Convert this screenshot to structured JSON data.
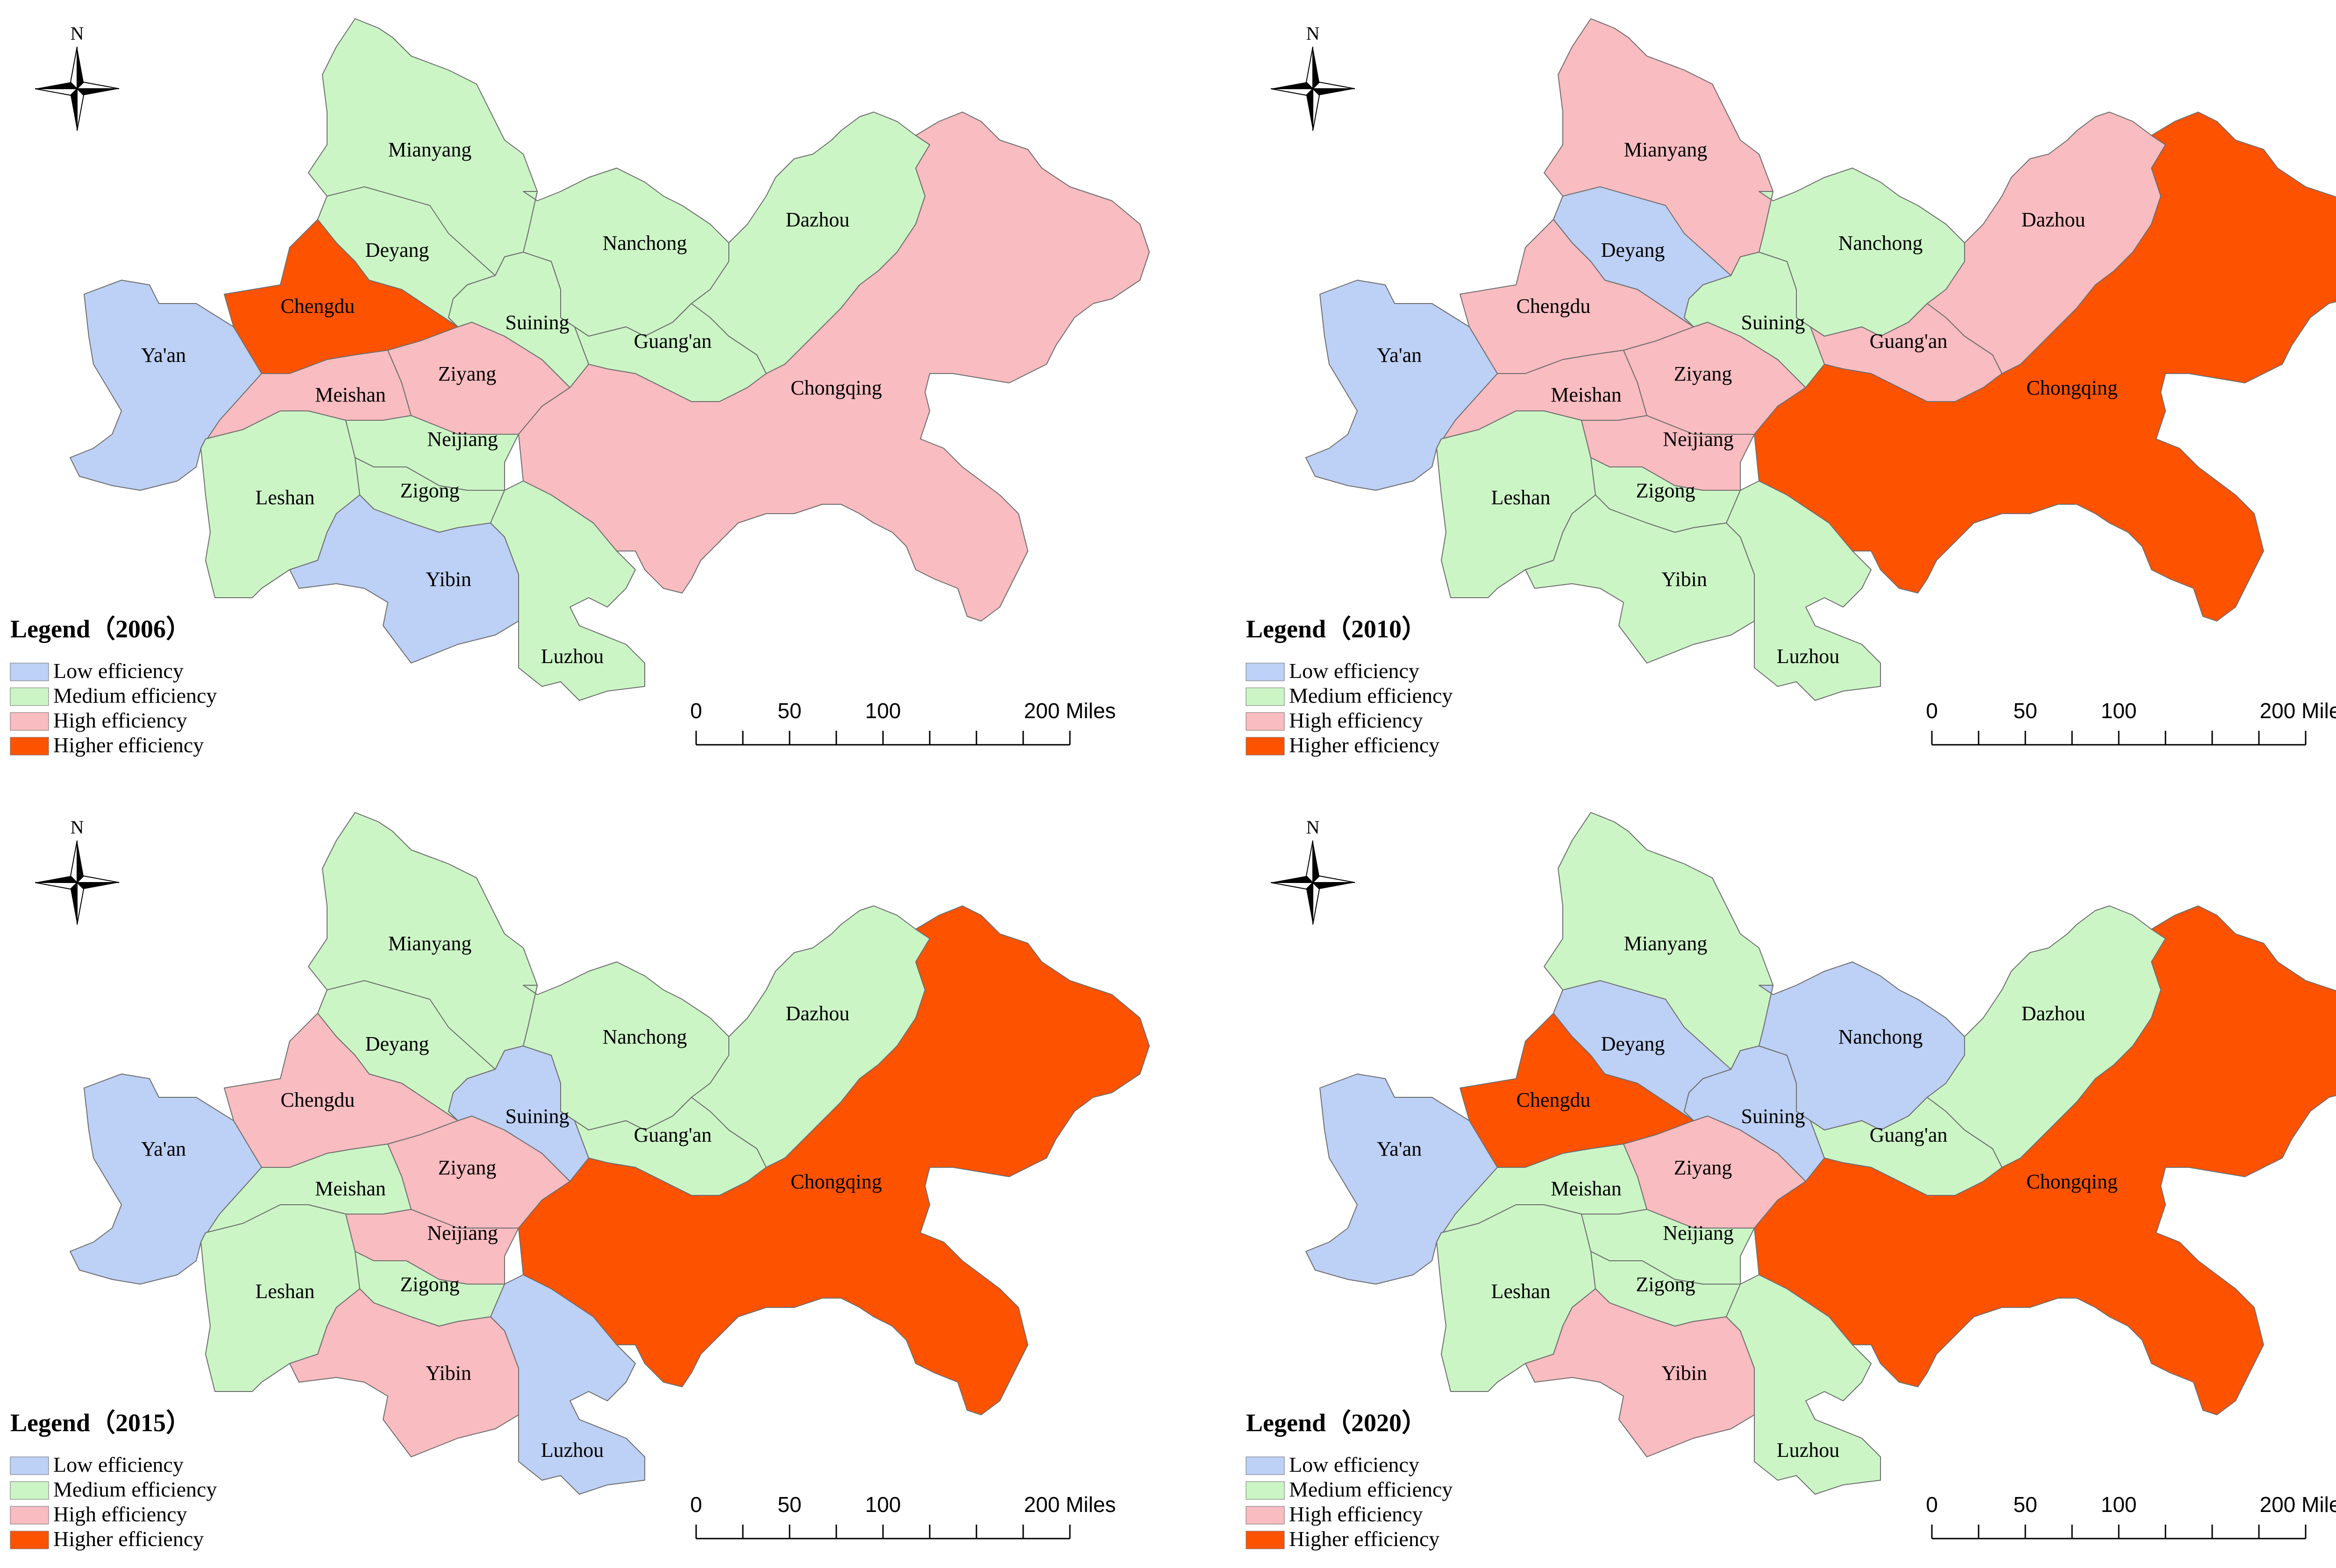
{
  "colors": {
    "low": "#bdd0f5",
    "medium": "#ccf5c6",
    "high": "#f9bcc0",
    "higher": "#fd5200",
    "border": "#6e6e6e"
  },
  "legend_items": [
    {
      "key": "low",
      "label": "Low efficiency"
    },
    {
      "key": "medium",
      "label": "Medium efficiency"
    },
    {
      "key": "high",
      "label": "High efficiency"
    },
    {
      "key": "higher",
      "label": "Higher efficiency"
    }
  ],
  "scalebar": {
    "labels": [
      "0",
      "50",
      "100",
      "200 Miles"
    ]
  },
  "north_label": "N",
  "region_names": {
    "mianyang": "Mianyang",
    "deyang": "Deyang",
    "chengdu": "Chengdu",
    "yaan": "Ya'an",
    "meishan": "Meishan",
    "leshan": "Leshan",
    "ziyang": "Ziyang",
    "neijiang": "Neijiang",
    "zigong": "Zigong",
    "yibin": "Yibin",
    "luzhou": "Luzhou",
    "suining": "Suining",
    "nanchong": "Nanchong",
    "guangan": "Guang'an",
    "dazhou": "Dazhou",
    "chongqing": "Chongqing"
  },
  "maps": [
    {
      "legend_title": "Legend（2006）",
      "classes": {
        "mianyang": "medium",
        "deyang": "medium",
        "chengdu": "higher",
        "yaan": "low",
        "meishan": "high",
        "leshan": "medium",
        "ziyang": "high",
        "neijiang": "medium",
        "zigong": "medium",
        "yibin": "low",
        "luzhou": "medium",
        "suining": "medium",
        "nanchong": "medium",
        "guangan": "medium",
        "dazhou": "medium",
        "chongqing": "high"
      }
    },
    {
      "legend_title": "Legend（2010）",
      "classes": {
        "mianyang": "high",
        "deyang": "low",
        "chengdu": "high",
        "yaan": "low",
        "meishan": "high",
        "leshan": "medium",
        "ziyang": "high",
        "neijiang": "high",
        "zigong": "medium",
        "yibin": "medium",
        "luzhou": "medium",
        "suining": "medium",
        "nanchong": "medium",
        "guangan": "high",
        "dazhou": "high",
        "chongqing": "higher"
      }
    },
    {
      "legend_title": "Legend（2015）",
      "classes": {
        "mianyang": "medium",
        "deyang": "medium",
        "chengdu": "high",
        "yaan": "low",
        "meishan": "medium",
        "leshan": "medium",
        "ziyang": "high",
        "neijiang": "high",
        "zigong": "medium",
        "yibin": "high",
        "luzhou": "low",
        "suining": "low",
        "nanchong": "medium",
        "guangan": "medium",
        "dazhou": "medium",
        "chongqing": "higher"
      }
    },
    {
      "legend_title": "Legend（2020）",
      "classes": {
        "mianyang": "medium",
        "deyang": "low",
        "chengdu": "higher",
        "yaan": "low",
        "meishan": "medium",
        "leshan": "medium",
        "ziyang": "high",
        "neijiang": "medium",
        "zigong": "medium",
        "yibin": "high",
        "luzhou": "medium",
        "suining": "low",
        "nanchong": "low",
        "guangan": "medium",
        "dazhou": "medium",
        "chongqing": "higher"
      }
    }
  ]
}
